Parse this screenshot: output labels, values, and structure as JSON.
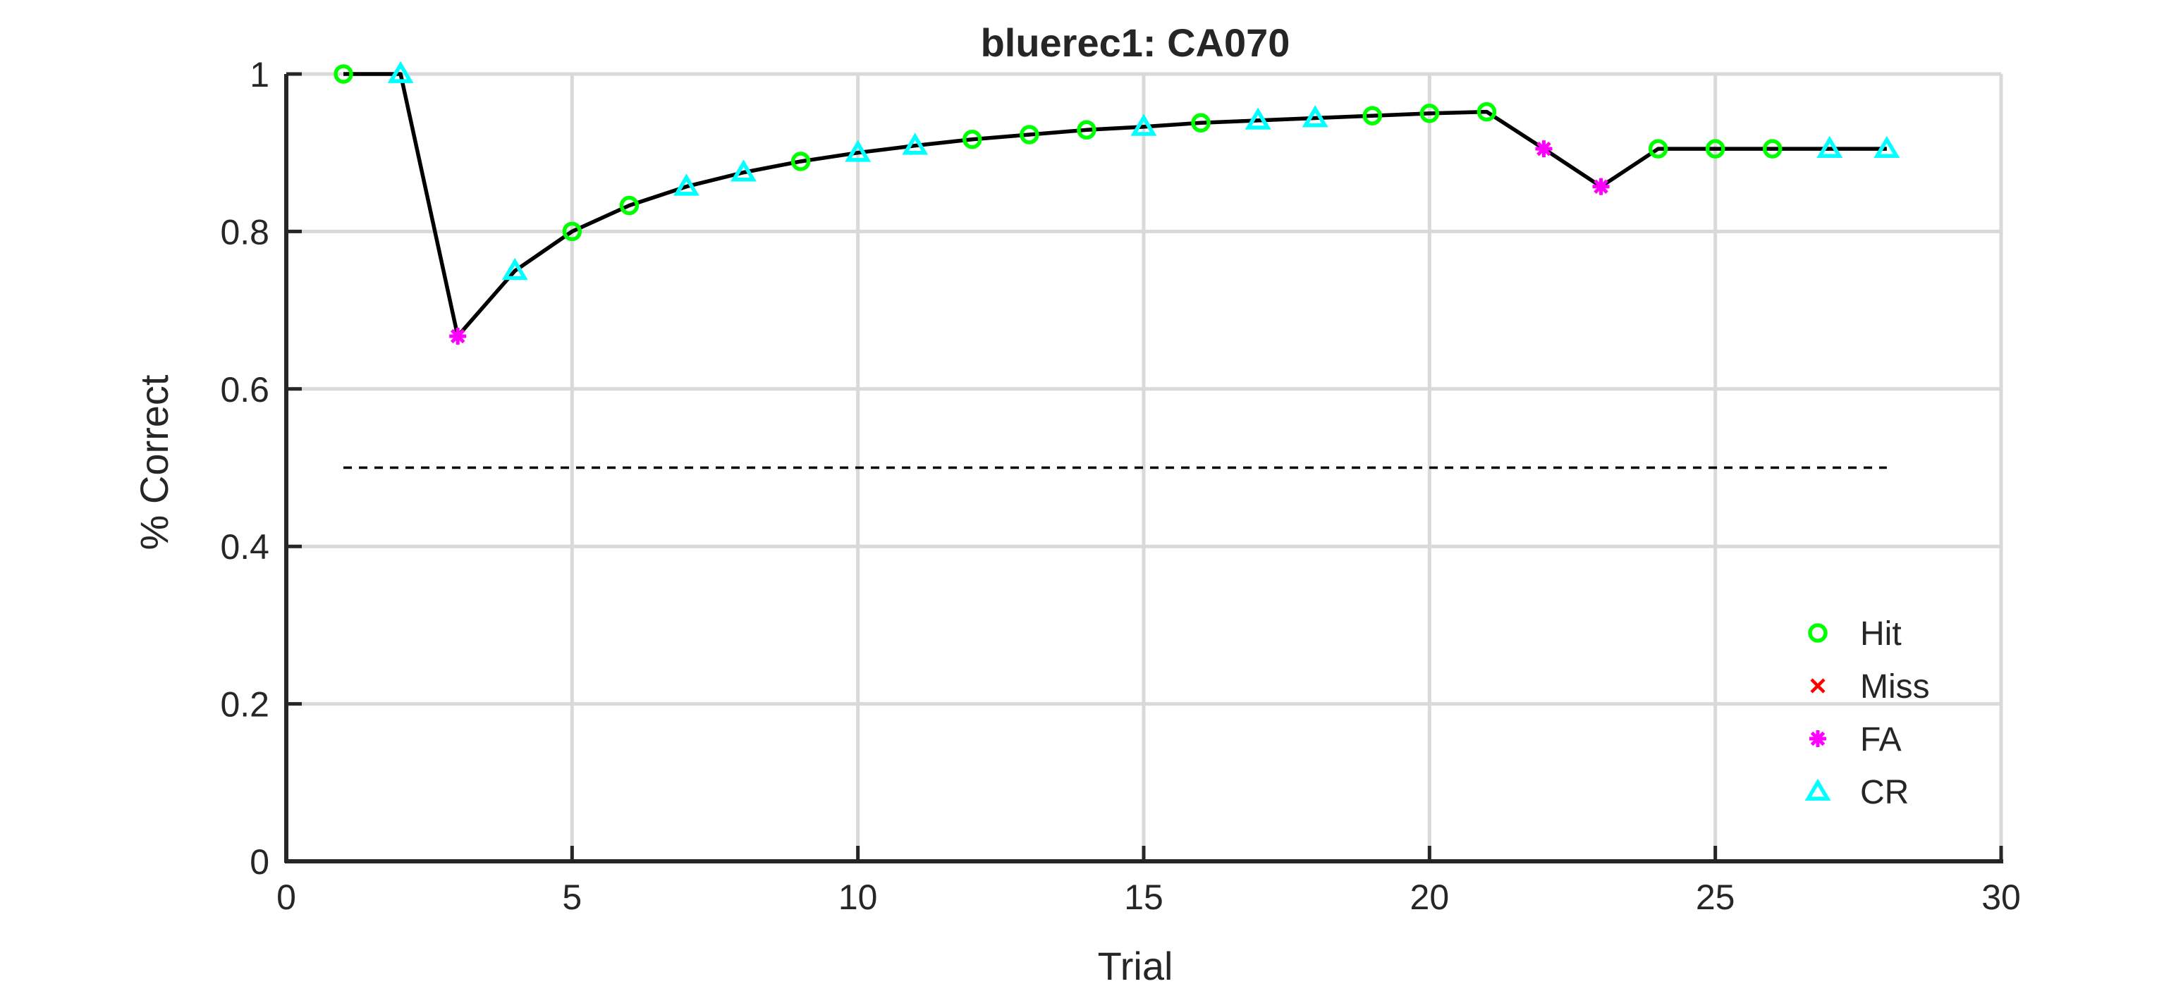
{
  "chart_data": {
    "type": "line",
    "title": "bluerec1: CA070",
    "xlabel": "Trial",
    "ylabel": "% Correct",
    "xlim": [
      0,
      30
    ],
    "ylim": [
      0,
      1
    ],
    "xticks": [
      0,
      5,
      10,
      15,
      20,
      25,
      30
    ],
    "yticks": [
      0,
      0.2,
      0.4,
      0.6,
      0.8,
      1
    ],
    "xtick_labels": [
      "0",
      "5",
      "10",
      "15",
      "20",
      "25",
      "30"
    ],
    "ytick_labels": [
      "0",
      "0.2",
      "0.4",
      "0.6",
      "0.8",
      "1"
    ],
    "grid": true,
    "reference_line": {
      "y": 0.5,
      "x_range": [
        1,
        28
      ],
      "style": "dashed"
    },
    "line_color": "#000000",
    "x": [
      1,
      2,
      3,
      4,
      5,
      6,
      7,
      8,
      9,
      10,
      11,
      12,
      13,
      14,
      15,
      16,
      17,
      18,
      19,
      20,
      21,
      22,
      23,
      24,
      25,
      26,
      27,
      28
    ],
    "y": [
      1,
      1,
      0.667,
      0.75,
      0.8,
      0.833,
      0.857,
      0.875,
      0.889,
      0.9,
      0.909,
      0.917,
      0.923,
      0.929,
      0.933,
      0.938,
      0.941,
      0.944,
      0.947,
      0.95,
      0.952,
      0.905,
      0.857,
      0.905,
      0.905,
      0.905,
      0.905,
      0.905
    ],
    "outcomes": [
      "Hit",
      "CR",
      "FA",
      "CR",
      "Hit",
      "Hit",
      "CR",
      "CR",
      "Hit",
      "CR",
      "CR",
      "Hit",
      "Hit",
      "Hit",
      "CR",
      "Hit",
      "CR",
      "CR",
      "Hit",
      "Hit",
      "Hit",
      "FA",
      "FA",
      "Hit",
      "Hit",
      "Hit",
      "CR",
      "CR"
    ],
    "legend": {
      "placement": "bottom-right",
      "entries": [
        {
          "key": "Hit",
          "label": "Hit",
          "marker": "circle",
          "color": "#00FF00"
        },
        {
          "key": "Miss",
          "label": "Miss",
          "marker": "x",
          "color": "#FF0000"
        },
        {
          "key": "FA",
          "label": "FA",
          "marker": "asterisk",
          "color": "#FF00FF"
        },
        {
          "key": "CR",
          "label": "CR",
          "marker": "triangle",
          "color": "#00FFFF"
        }
      ]
    }
  }
}
